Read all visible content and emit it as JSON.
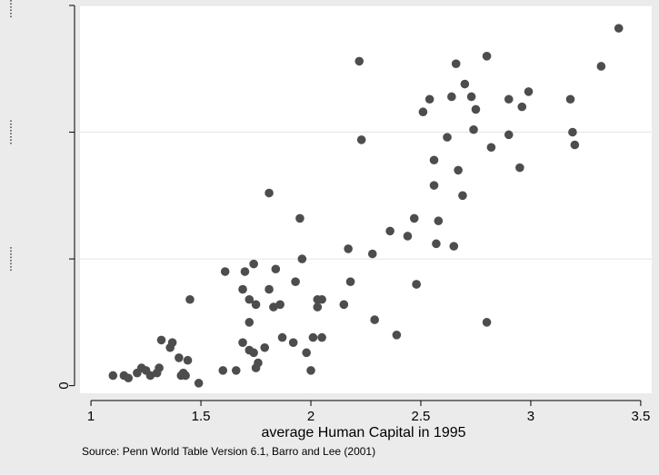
{
  "chart_data": {
    "type": "scatter",
    "title": "",
    "xlabel": "average Human Capital in 1995",
    "ylabel": "",
    "note": "Source: Penn World Table Version 6.1, Barro and Lee (2001)",
    "xlim": [
      0.95,
      3.55
    ],
    "ylim": [
      -0.3,
      15
    ],
    "x_ticks": [
      1,
      1.5,
      2,
      2.5,
      3,
      3.5
    ],
    "x_tick_labels": [
      "1",
      "1.5",
      "2",
      "2.5",
      "3",
      "3.5"
    ],
    "y_ticks": [
      0,
      5,
      10,
      15
    ],
    "y_tick_labels": [
      "0",
      "",
      "",
      ""
    ],
    "grid": true,
    "marker_color": "#4d4d4d",
    "points": [
      {
        "x": 1.1,
        "y": 0.4
      },
      {
        "x": 1.15,
        "y": 0.4
      },
      {
        "x": 1.17,
        "y": 0.3
      },
      {
        "x": 1.21,
        "y": 0.5
      },
      {
        "x": 1.23,
        "y": 0.7
      },
      {
        "x": 1.25,
        "y": 0.6
      },
      {
        "x": 1.27,
        "y": 0.4
      },
      {
        "x": 1.3,
        "y": 0.5
      },
      {
        "x": 1.31,
        "y": 0.7
      },
      {
        "x": 1.32,
        "y": 1.8
      },
      {
        "x": 1.36,
        "y": 1.5
      },
      {
        "x": 1.37,
        "y": 1.7
      },
      {
        "x": 1.4,
        "y": 1.1
      },
      {
        "x": 1.41,
        "y": 0.4
      },
      {
        "x": 1.42,
        "y": 0.5
      },
      {
        "x": 1.43,
        "y": 0.4
      },
      {
        "x": 1.44,
        "y": 1.0
      },
      {
        "x": 1.45,
        "y": 3.4
      },
      {
        "x": 1.49,
        "y": 0.1
      },
      {
        "x": 1.6,
        "y": 0.6
      },
      {
        "x": 1.61,
        "y": 4.5
      },
      {
        "x": 1.66,
        "y": 0.6
      },
      {
        "x": 1.69,
        "y": 1.7
      },
      {
        "x": 1.69,
        "y": 3.8
      },
      {
        "x": 1.7,
        "y": 4.5
      },
      {
        "x": 1.72,
        "y": 1.4
      },
      {
        "x": 1.72,
        "y": 2.5
      },
      {
        "x": 1.72,
        "y": 3.4
      },
      {
        "x": 1.74,
        "y": 1.3
      },
      {
        "x": 1.74,
        "y": 4.8
      },
      {
        "x": 1.75,
        "y": 3.2
      },
      {
        "x": 1.75,
        "y": 0.7
      },
      {
        "x": 1.76,
        "y": 0.9
      },
      {
        "x": 1.79,
        "y": 1.5
      },
      {
        "x": 1.81,
        "y": 7.6
      },
      {
        "x": 1.81,
        "y": 3.8
      },
      {
        "x": 1.83,
        "y": 3.1
      },
      {
        "x": 1.84,
        "y": 4.6
      },
      {
        "x": 1.86,
        "y": 3.2
      },
      {
        "x": 1.87,
        "y": 1.9
      },
      {
        "x": 1.92,
        "y": 1.7
      },
      {
        "x": 1.93,
        "y": 4.1
      },
      {
        "x": 1.95,
        "y": 6.6
      },
      {
        "x": 1.96,
        "y": 5.0
      },
      {
        "x": 1.98,
        "y": 1.3
      },
      {
        "x": 2.0,
        "y": 0.6
      },
      {
        "x": 2.01,
        "y": 1.9
      },
      {
        "x": 2.03,
        "y": 3.1
      },
      {
        "x": 2.03,
        "y": 3.4
      },
      {
        "x": 2.05,
        "y": 3.4
      },
      {
        "x": 2.05,
        "y": 1.9
      },
      {
        "x": 2.15,
        "y": 3.2
      },
      {
        "x": 2.17,
        "y": 5.4
      },
      {
        "x": 2.18,
        "y": 4.1
      },
      {
        "x": 2.22,
        "y": 12.8
      },
      {
        "x": 2.23,
        "y": 9.7
      },
      {
        "x": 2.28,
        "y": 5.2
      },
      {
        "x": 2.29,
        "y": 2.6
      },
      {
        "x": 2.36,
        "y": 6.1
      },
      {
        "x": 2.39,
        "y": 2.0
      },
      {
        "x": 2.44,
        "y": 5.9
      },
      {
        "x": 2.47,
        "y": 6.6
      },
      {
        "x": 2.48,
        "y": 4.0
      },
      {
        "x": 2.48,
        "y": 4.0
      },
      {
        "x": 2.51,
        "y": 10.8
      },
      {
        "x": 2.54,
        "y": 11.3
      },
      {
        "x": 2.56,
        "y": 7.9
      },
      {
        "x": 2.56,
        "y": 8.9
      },
      {
        "x": 2.57,
        "y": 5.6
      },
      {
        "x": 2.58,
        "y": 6.5
      },
      {
        "x": 2.62,
        "y": 9.8
      },
      {
        "x": 2.64,
        "y": 11.4
      },
      {
        "x": 2.65,
        "y": 5.5
      },
      {
        "x": 2.66,
        "y": 12.7
      },
      {
        "x": 2.67,
        "y": 8.5
      },
      {
        "x": 2.69,
        "y": 7.5
      },
      {
        "x": 2.7,
        "y": 11.9
      },
      {
        "x": 2.73,
        "y": 11.4
      },
      {
        "x": 2.74,
        "y": 10.1
      },
      {
        "x": 2.75,
        "y": 10.9
      },
      {
        "x": 2.8,
        "y": 13.0
      },
      {
        "x": 2.8,
        "y": 2.5
      },
      {
        "x": 2.82,
        "y": 9.4
      },
      {
        "x": 2.9,
        "y": 9.9
      },
      {
        "x": 2.9,
        "y": 11.3
      },
      {
        "x": 2.95,
        "y": 8.6
      },
      {
        "x": 2.96,
        "y": 11.0
      },
      {
        "x": 2.99,
        "y": 11.6
      },
      {
        "x": 3.18,
        "y": 11.3
      },
      {
        "x": 3.19,
        "y": 10.0
      },
      {
        "x": 3.2,
        "y": 9.5
      },
      {
        "x": 3.32,
        "y": 12.6
      },
      {
        "x": 3.4,
        "y": 14.1
      }
    ]
  }
}
